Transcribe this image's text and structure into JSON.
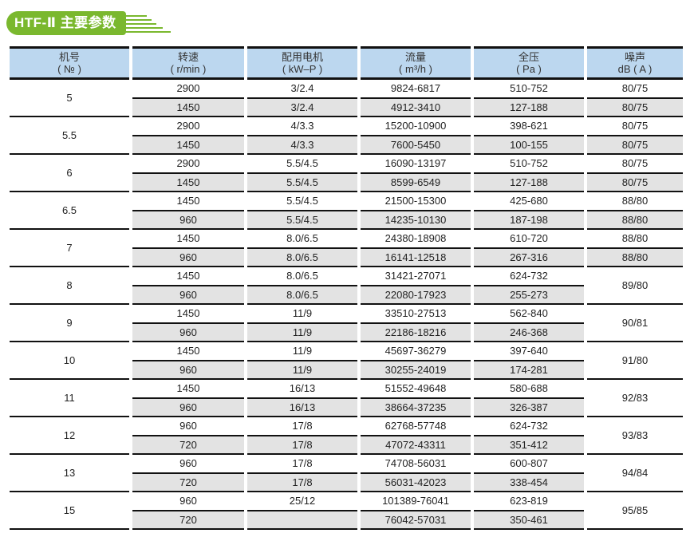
{
  "title": "HTF-Ⅱ 主要参数",
  "colors": {
    "accent": "#7ab82e",
    "header_bg": "#bcd7ef",
    "alt_row": "#e3e3e3"
  },
  "headers": [
    {
      "line1": "机号",
      "line2": "( № )"
    },
    {
      "line1": "转速",
      "line2": "( r/min )"
    },
    {
      "line1": "配用电机",
      "line2": "( kW–P )"
    },
    {
      "line1": "流量",
      "line2": "( m³/h )"
    },
    {
      "line1": "全压",
      "line2": "( Pa )"
    },
    {
      "line1": "噪声",
      "line2": "dB ( A )"
    }
  ],
  "groups": [
    {
      "no": "5",
      "rows": [
        [
          "2900",
          "3/2.4",
          "9824-6817",
          "510-752",
          "80/75"
        ],
        [
          "1450",
          "3/2.4",
          "4912-3410",
          "127-188",
          "80/75"
        ]
      ]
    },
    {
      "no": "5.5",
      "rows": [
        [
          "2900",
          "4/3.3",
          "15200-10900",
          "398-621",
          "80/75"
        ],
        [
          "1450",
          "4/3.3",
          "7600-5450",
          "100-155",
          "80/75"
        ]
      ]
    },
    {
      "no": "6",
      "rows": [
        [
          "2900",
          "5.5/4.5",
          "16090-13197",
          "510-752",
          "80/75"
        ],
        [
          "1450",
          "5.5/4.5",
          "8599-6549",
          "127-188",
          "80/75"
        ]
      ]
    },
    {
      "no": "6.5",
      "rows": [
        [
          "1450",
          "5.5/4.5",
          "21500-15300",
          "425-680",
          "88/80"
        ],
        [
          "960",
          "5.5/4.5",
          "14235-10130",
          "187-198",
          "88/80"
        ]
      ]
    },
    {
      "no": "7",
      "rows": [
        [
          "1450",
          "8.0/6.5",
          "24380-18908",
          "610-720",
          "88/80"
        ],
        [
          "960",
          "8.0/6.5",
          "16141-12518",
          "267-316",
          "88/80"
        ]
      ]
    },
    {
      "no": "8",
      "noise": "89/80",
      "rows": [
        [
          "1450",
          "8.0/6.5",
          "31421-27071",
          "624-732"
        ],
        [
          "960",
          "8.0/6.5",
          "22080-17923",
          "255-273"
        ]
      ]
    },
    {
      "no": "9",
      "noise": "90/81",
      "rows": [
        [
          "1450",
          "11/9",
          "33510-27513",
          "562-840"
        ],
        [
          "960",
          "11/9",
          "22186-18216",
          "246-368"
        ]
      ]
    },
    {
      "no": "10",
      "noise": "91/80",
      "rows": [
        [
          "1450",
          "11/9",
          "45697-36279",
          "397-640"
        ],
        [
          "960",
          "11/9",
          "30255-24019",
          "174-281"
        ]
      ]
    },
    {
      "no": "11",
      "noise": "92/83",
      "rows": [
        [
          "1450",
          "16/13",
          "51552-49648",
          "580-688"
        ],
        [
          "960",
          "16/13",
          "38664-37235",
          "326-387"
        ]
      ]
    },
    {
      "no": "12",
      "noise": "93/83",
      "rows": [
        [
          "960",
          "17/8",
          "62768-57748",
          "624-732"
        ],
        [
          "720",
          "17/8",
          "47072-43311",
          "351-412"
        ]
      ]
    },
    {
      "no": "13",
      "noise": "94/84",
      "rows": [
        [
          "960",
          "17/8",
          "74708-56031",
          "600-807"
        ],
        [
          "720",
          "17/8",
          "56031-42023",
          "338-454"
        ]
      ]
    },
    {
      "no": "15",
      "noise": "95/85",
      "rows": [
        [
          "960",
          "25/12",
          "101389-76041",
          "623-819"
        ],
        [
          "720",
          "",
          "76042-57031",
          "350-461"
        ]
      ]
    }
  ]
}
